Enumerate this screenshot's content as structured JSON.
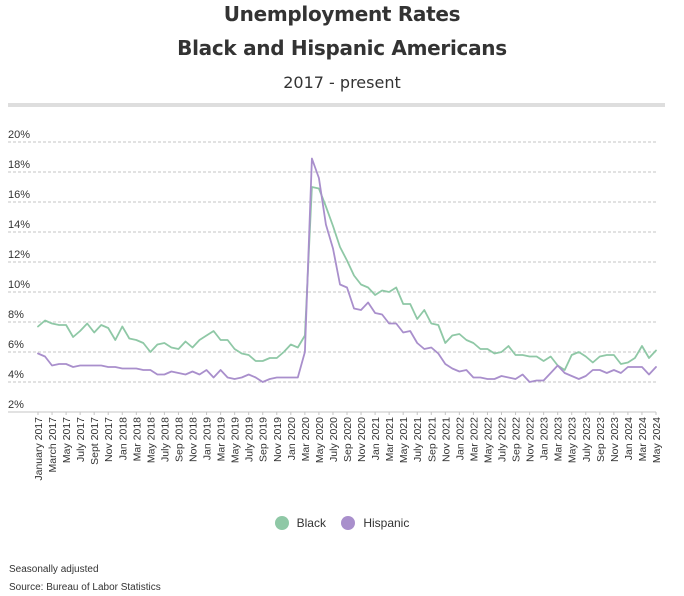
{
  "header": {
    "title_line1": "Unemployment Rates",
    "title_line2": "Black and Hispanic Americans",
    "subtitle": "2017 - present"
  },
  "chart_data": {
    "type": "line",
    "title": "Unemployment Rates Black and Hispanic Americans",
    "subtitle": "2017 - present",
    "xlabel": "",
    "ylabel": "",
    "ylim": [
      2,
      20
    ],
    "y_ticks": [
      "2%",
      "4%",
      "6%",
      "8%",
      "10%",
      "12%",
      "14%",
      "16%",
      "18%",
      "20%"
    ],
    "grid": "horizontal dashed",
    "legend_position": "bottom-center",
    "x_tick_labels": [
      "January 2017",
      "March 2017",
      "May 2017",
      "July 2017",
      "Sept 2017",
      "Nov 2017",
      "Jan 2018",
      "Mar 2018",
      "May 2018",
      "July 2018",
      "Sep 2018",
      "Nov 2018",
      "Jan 2019",
      "Mar 2019",
      "May 2019",
      "July 2019",
      "Sep 2019",
      "Nov 2019",
      "Jan 2020",
      "Mar 2020",
      "May 2020",
      "July 2020",
      "Sep 2020",
      "Nov 2020",
      "Jan 2021",
      "Mar 2021",
      "May 2021",
      "July 2021",
      "Sep 2021",
      "Nov 2021",
      "Jan 2022",
      "Mar 2022",
      "May 2022",
      "July 2022",
      "Sep 2022",
      "Nov 2022",
      "Jan 2023",
      "Mar 2023",
      "May 2023",
      "July 2023",
      "Sep 2023",
      "Nov 2023",
      "Jan 2024",
      "Mar 2024",
      "May 2024"
    ],
    "series": [
      {
        "name": "Black",
        "color": "#8fc8a6",
        "values": [
          7.7,
          8.1,
          7.9,
          7.8,
          7.8,
          7.0,
          7.4,
          7.9,
          7.3,
          7.8,
          7.6,
          6.8,
          7.7,
          6.9,
          6.8,
          6.6,
          6.0,
          6.5,
          6.6,
          6.3,
          6.2,
          6.7,
          6.3,
          6.8,
          7.1,
          7.4,
          6.8,
          6.8,
          6.2,
          5.9,
          5.8,
          5.4,
          5.4,
          5.6,
          5.6,
          6.0,
          6.5,
          6.3,
          7.1,
          17.0,
          16.9,
          15.7,
          14.4,
          13.0,
          12.1,
          11.1,
          10.5,
          10.3,
          9.8,
          10.1,
          10.0,
          10.3,
          9.2,
          9.2,
          8.2,
          8.8,
          7.9,
          7.8,
          6.6,
          7.1,
          7.2,
          6.8,
          6.6,
          6.2,
          6.2,
          5.9,
          6.0,
          6.4,
          5.8,
          5.8,
          5.7,
          5.7,
          5.4,
          5.7,
          5.1,
          4.8,
          5.8,
          6.0,
          5.7,
          5.3,
          5.7,
          5.8,
          5.8,
          5.2,
          5.3,
          5.6,
          6.4,
          5.6,
          6.1
        ]
      },
      {
        "name": "Hispanic",
        "color": "#a98fcc",
        "values": [
          5.9,
          5.7,
          5.1,
          5.2,
          5.2,
          5.0,
          5.1,
          5.1,
          5.1,
          5.1,
          5.0,
          5.0,
          4.9,
          4.9,
          4.9,
          4.8,
          4.8,
          4.5,
          4.5,
          4.7,
          4.6,
          4.5,
          4.7,
          4.5,
          4.8,
          4.3,
          4.8,
          4.3,
          4.2,
          4.3,
          4.5,
          4.3,
          4.0,
          4.2,
          4.3,
          4.3,
          4.3,
          4.3,
          6.0,
          18.9,
          17.6,
          14.5,
          12.9,
          10.5,
          10.3,
          8.9,
          8.8,
          9.3,
          8.6,
          8.5,
          7.9,
          7.9,
          7.3,
          7.4,
          6.6,
          6.2,
          6.3,
          5.9,
          5.2,
          4.9,
          4.7,
          4.8,
          4.3,
          4.3,
          4.2,
          4.2,
          4.4,
          4.3,
          4.2,
          4.5,
          4.0,
          4.1,
          4.1,
          4.6,
          5.1,
          4.6,
          4.4,
          4.2,
          4.4,
          4.8,
          4.8,
          4.6,
          4.8,
          4.6,
          5.0,
          5.0,
          5.0,
          4.5,
          5.0
        ]
      }
    ]
  },
  "legend": {
    "items": [
      {
        "label": "Black",
        "color": "#8fc8a6"
      },
      {
        "label": "Hispanic",
        "color": "#a98fcc"
      }
    ]
  },
  "footer": {
    "note": "Seasonally adjusted",
    "source": "Source: Bureau of Labor Statistics"
  }
}
